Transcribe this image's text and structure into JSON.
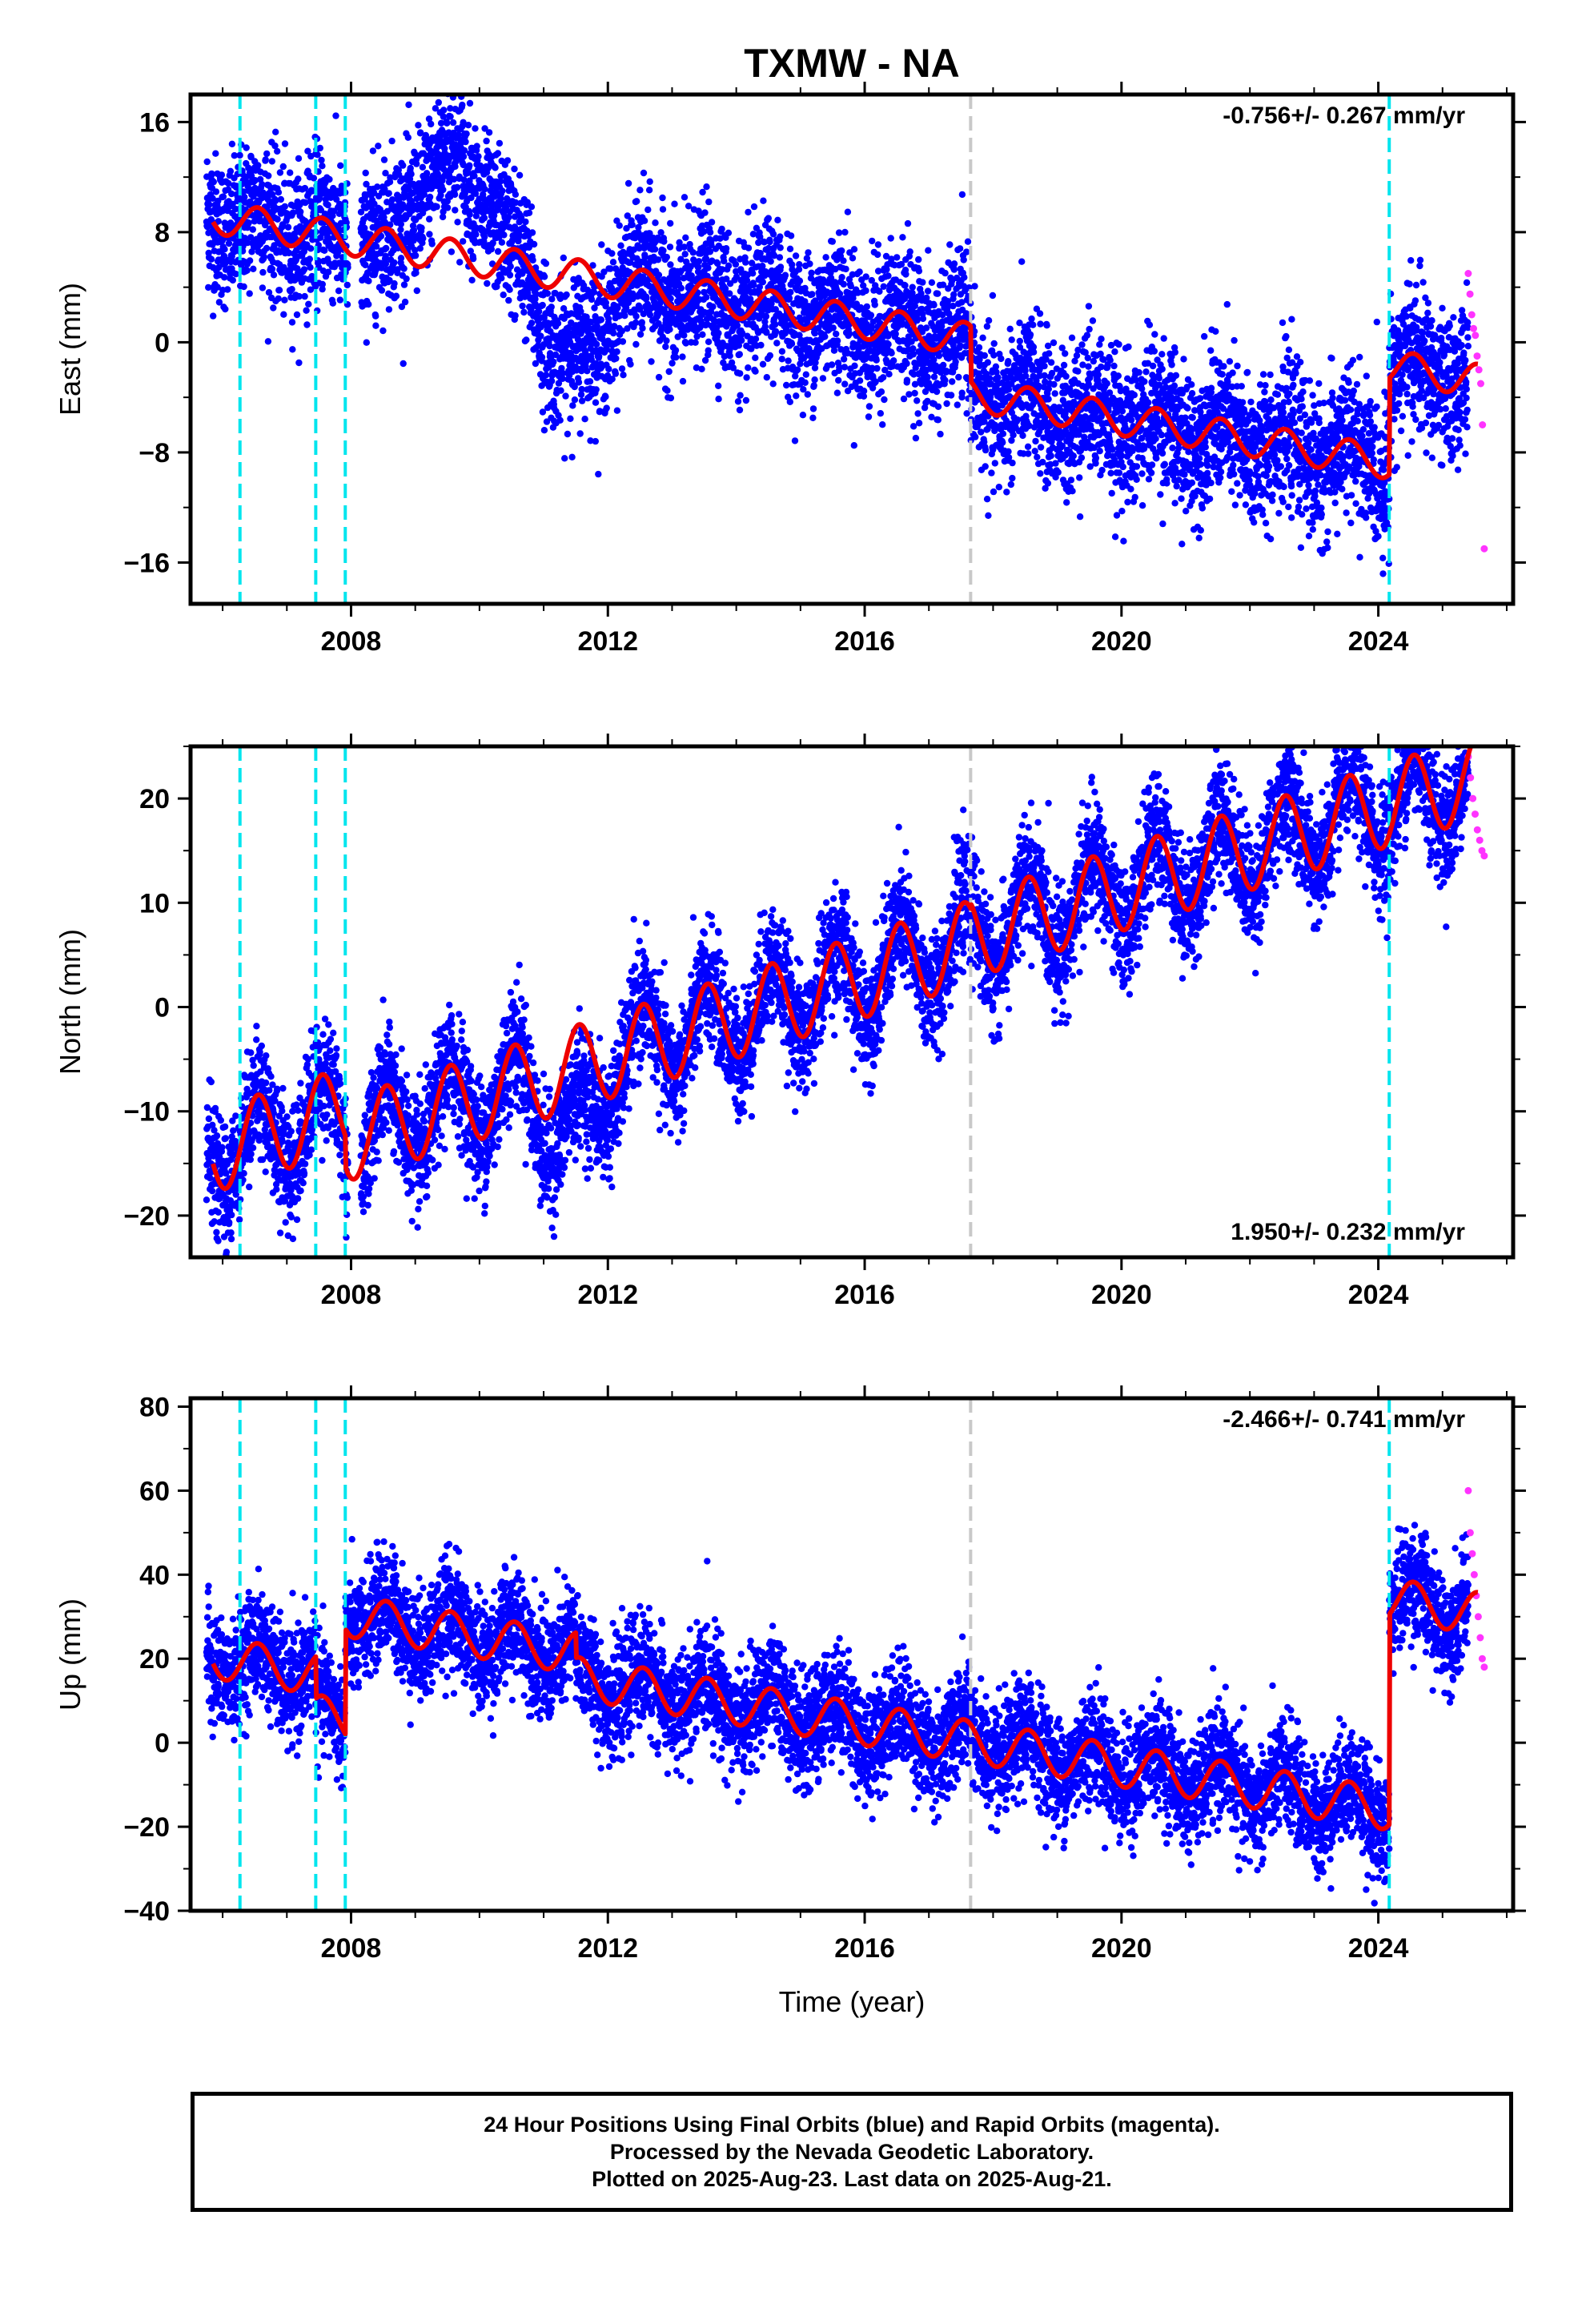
{
  "title": "TXMW - NA",
  "xlabel": "Time (year)",
  "colors": {
    "final_orbits": "#0000ff",
    "rapid_orbits": "#ff33ff",
    "model": "#ee0000",
    "equipment_change": "#00e5ee",
    "other_event": "#c8c8c8"
  },
  "footer": {
    "line1": "24 Hour Positions Using Final Orbits (blue) and Rapid Orbits (magenta).",
    "line2": "Processed by the Nevada Geodetic Laboratory.",
    "line3": "Plotted on 2025-Aug-23. Last data on 2025-Aug-21."
  },
  "chart_data": [
    {
      "type": "scatter",
      "component": "east",
      "ylabel": "East (mm)",
      "rate_label": "-0.756+/- 0.267 mm/yr",
      "rate_position": "top-right",
      "xlim": [
        2005.5,
        2026.1
      ],
      "ylim": [
        -19,
        18
      ],
      "yticks": [
        -16,
        -8,
        0,
        8,
        16
      ],
      "xticks": [
        2008,
        2012,
        2016,
        2020,
        2024
      ],
      "grid": false,
      "events_cyan": [
        2006.27,
        2007.45,
        2007.91,
        2024.17
      ],
      "events_gray": [
        2017.65
      ],
      "model": {
        "rate": -0.756,
        "intercept_2006": 9.0,
        "annual_amplitude": 1.2,
        "offsets": [
          {
            "t": 2017.65,
            "dy": -4.0
          },
          {
            "t": 2024.17,
            "dy": 7.0
          }
        ]
      },
      "scatter": {
        "spread": 2.6,
        "peak_2008_2010": 6.5,
        "dip_2011": -6.0
      },
      "rapid": {
        "x_range": [
          2025.4,
          2025.65
        ],
        "values": [
          5.0,
          3.5,
          2.0,
          1.0,
          0.5,
          -1.0,
          -2.0,
          -3.0,
          -6.0,
          -15.0
        ]
      }
    },
    {
      "type": "scatter",
      "component": "north",
      "ylabel": "North (mm)",
      "rate_label": "1.950+/- 0.232 mm/yr",
      "rate_position": "bottom-right",
      "xlim": [
        2005.5,
        2026.1
      ],
      "ylim": [
        -24,
        25
      ],
      "yticks": [
        -20,
        -10,
        0,
        10,
        20
      ],
      "xticks": [
        2008,
        2012,
        2016,
        2020,
        2024
      ],
      "grid": false,
      "events_cyan": [
        2006.27,
        2007.45,
        2007.91,
        2024.17
      ],
      "events_gray": [
        2017.65
      ],
      "model": {
        "rate": 1.95,
        "intercept_2006": -13.5,
        "annual_amplitude": 4.0,
        "offsets": [
          {
            "t": 2007.91,
            "dy": -3.0
          },
          {
            "t": 2017.65,
            "dy": 0.5
          },
          {
            "t": 2024.17,
            "dy": 0.0
          }
        ]
      },
      "scatter": {
        "spread": 2.8,
        "dip_2011": -6.0
      },
      "rapid": {
        "x_range": [
          2025.4,
          2025.65
        ],
        "values": [
          24.0,
          22.0,
          20.0,
          18.5,
          17.0,
          16.0,
          15.0,
          14.5
        ]
      }
    },
    {
      "type": "scatter",
      "component": "up",
      "ylabel": "Up (mm)",
      "rate_label": "-2.466+/- 0.741 mm/yr",
      "rate_position": "top-right",
      "xlim": [
        2005.5,
        2026.1
      ],
      "ylim": [
        -40,
        82
      ],
      "yticks": [
        -40,
        -20,
        0,
        20,
        40,
        60,
        80
      ],
      "xticks": [
        2008,
        2012,
        2016,
        2020,
        2024
      ],
      "grid": false,
      "events_cyan": [
        2006.27,
        2007.45,
        2007.91,
        2024.17
      ],
      "events_gray": [
        2017.65
      ],
      "model": {
        "rate": -2.466,
        "intercept_2006": 20.0,
        "annual_amplitude": 5.0,
        "offsets": [
          {
            "t": 2007.45,
            "dy": -10.0
          },
          {
            "t": 2007.91,
            "dy": 25.0
          },
          {
            "t": 2011.5,
            "dy": -6.0
          },
          {
            "t": 2024.17,
            "dy": 50.0
          }
        ]
      },
      "scatter": {
        "spread": 6.5
      },
      "rapid": {
        "x_range": [
          2025.4,
          2025.65
        ],
        "values": [
          60.0,
          50.0,
          45.0,
          40.0,
          35.0,
          30.0,
          25.0,
          20.0,
          18.0
        ]
      }
    }
  ]
}
